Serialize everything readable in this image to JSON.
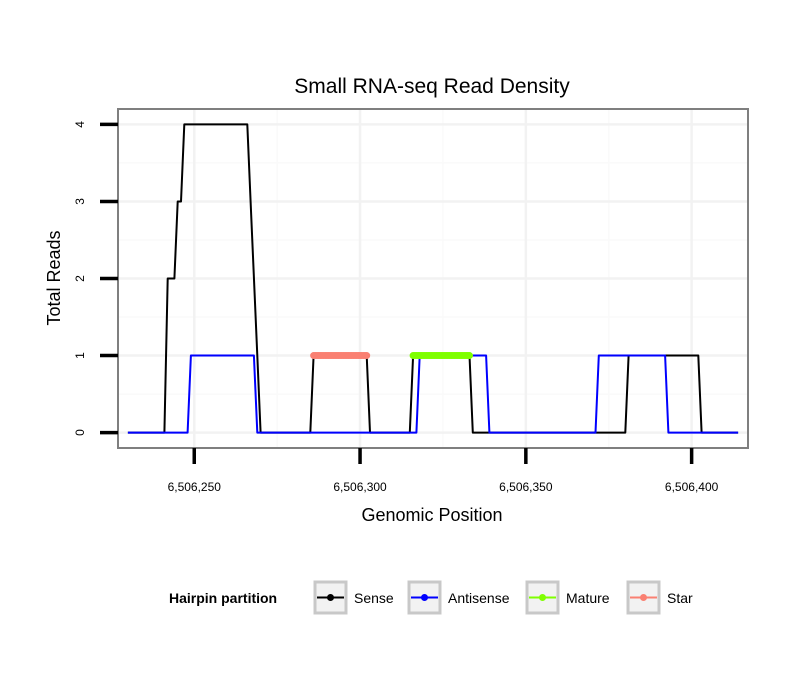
{
  "chart_data": {
    "type": "line",
    "title": "Small RNA-seq Read Density",
    "xlabel": "Genomic Position",
    "ylabel": "Total Reads",
    "xlim": [
      6506227,
      6506417
    ],
    "ylim": [
      -0.2,
      4.2
    ],
    "x_ticks": [
      6506250,
      6506300,
      6506350,
      6506400
    ],
    "x_tick_labels": [
      "6,506,250",
      "6,506,300",
      "6,506,350",
      "6,506,400"
    ],
    "y_ticks": [
      0,
      1,
      2,
      3,
      4
    ],
    "y_tick_labels": [
      "0",
      "1",
      "2",
      "3",
      "4"
    ],
    "grid": true,
    "legend": {
      "title": "Hairpin partition",
      "placement": "bottom",
      "items": [
        {
          "label": "Sense",
          "color": "#000000"
        },
        {
          "label": "Antisense",
          "color": "#0000ff"
        },
        {
          "label": "Mature",
          "color": "#7fff00"
        },
        {
          "label": "Star",
          "color": "#fa8072"
        }
      ]
    },
    "series": [
      {
        "name": "Sense",
        "color": "#000000",
        "x": [
          6506230,
          6506241,
          6506242,
          6506244,
          6506245,
          6506246,
          6506247,
          6506249,
          6506250,
          6506266,
          6506267,
          6506269,
          6506270,
          6506285,
          6506286,
          6506302,
          6506303,
          6506315,
          6506316,
          6506333,
          6506334,
          6506380,
          6506381,
          6506402,
          6506403,
          6506414
        ],
        "values": [
          0,
          0,
          2,
          2,
          3,
          3,
          4,
          4,
          4,
          4,
          3,
          1,
          0,
          0,
          1,
          1,
          0,
          0,
          1,
          1,
          0,
          0,
          1,
          1,
          0,
          0
        ]
      },
      {
        "name": "Antisense",
        "color": "#0000ff",
        "x": [
          6506230,
          6506248,
          6506249,
          6506268,
          6506269,
          6506317,
          6506318,
          6506338,
          6506339,
          6506371,
          6506372,
          6506392,
          6506393,
          6506414
        ],
        "values": [
          0,
          0,
          1,
          1,
          0,
          0,
          1,
          1,
          0,
          0,
          1,
          1,
          0,
          0
        ]
      },
      {
        "name": "Mature",
        "color": "#7fff00",
        "x": [
          6506316,
          6506333
        ],
        "values": [
          1,
          1
        ],
        "points_step": 0.5
      },
      {
        "name": "Star",
        "color": "#fa8072",
        "x": [
          6506286,
          6506302
        ],
        "values": [
          1,
          1
        ],
        "points_step": 0.5
      }
    ]
  }
}
